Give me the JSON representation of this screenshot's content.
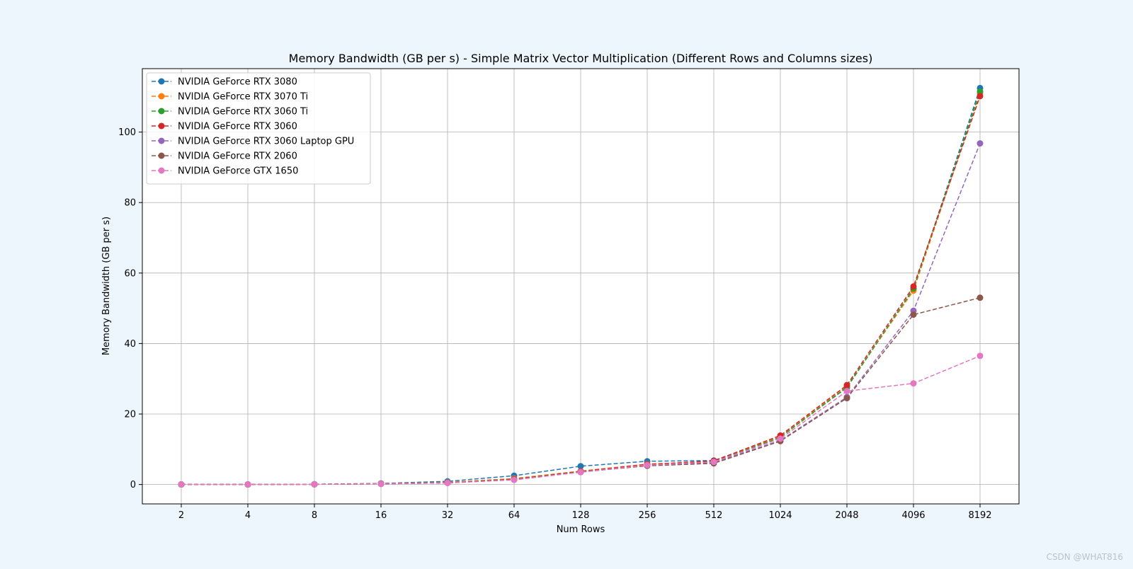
{
  "watermark": "CSDN @WHAT816",
  "chart_data": {
    "type": "line",
    "title": "Memory Bandwidth (GB per s) - Simple Matrix Vector Multiplication (Different Rows and Columns sizes)",
    "xlabel": "Num Rows",
    "ylabel": "Memory Bandwidth (GB per s)",
    "x_scale": "categorical",
    "categories": [
      "2",
      "4",
      "8",
      "16",
      "32",
      "64",
      "128",
      "256",
      "512",
      "1024",
      "2048",
      "4096",
      "8192"
    ],
    "ylim": [
      -5.5,
      118
    ],
    "yticks": [
      0,
      20,
      40,
      60,
      80,
      100
    ],
    "grid": true,
    "legend_position": "top-left",
    "line_style": "dashed",
    "marker": "circle",
    "series": [
      {
        "name": "NVIDIA GeForce RTX 3080",
        "color": "#1f77b4",
        "values": [
          0.01,
          0.03,
          0.08,
          0.3,
          0.9,
          2.5,
          5.2,
          6.6,
          6.8,
          13.5,
          27.5,
          55.5,
          112.5
        ]
      },
      {
        "name": "NVIDIA GeForce RTX 3070 Ti",
        "color": "#ff7f0e",
        "values": [
          0.01,
          0.02,
          0.07,
          0.25,
          0.6,
          1.7,
          3.8,
          5.8,
          6.5,
          13.6,
          27.8,
          55.0,
          111.0
        ]
      },
      {
        "name": "NVIDIA GeForce RTX 3060 Ti",
        "color": "#2ca02c",
        "values": [
          0.01,
          0.02,
          0.06,
          0.22,
          0.5,
          1.5,
          3.7,
          5.6,
          6.4,
          13.4,
          27.6,
          55.6,
          111.5
        ]
      },
      {
        "name": "NVIDIA GeForce RTX 3060",
        "color": "#d62728",
        "values": [
          0.01,
          0.02,
          0.06,
          0.22,
          0.5,
          1.5,
          3.7,
          5.7,
          6.7,
          13.9,
          28.2,
          56.2,
          110.2
        ]
      },
      {
        "name": "NVIDIA GeForce RTX 3060 Laptop GPU",
        "color": "#9467bd",
        "values": [
          0.01,
          0.02,
          0.05,
          0.2,
          0.45,
          1.4,
          3.5,
          5.4,
          6.2,
          12.5,
          24.8,
          49.3,
          96.8
        ]
      },
      {
        "name": "NVIDIA GeForce RTX 2060",
        "color": "#8c564b",
        "values": [
          0.01,
          0.02,
          0.05,
          0.18,
          0.45,
          1.4,
          3.6,
          5.3,
          6.0,
          12.3,
          24.5,
          48.2,
          53.0
        ]
      },
      {
        "name": "NVIDIA GeForce GTX 1650",
        "color": "#e377c2",
        "values": [
          0.01,
          0.02,
          0.05,
          0.18,
          0.45,
          1.3,
          3.5,
          5.5,
          6.4,
          13.0,
          26.5,
          28.7,
          36.5
        ]
      }
    ]
  }
}
